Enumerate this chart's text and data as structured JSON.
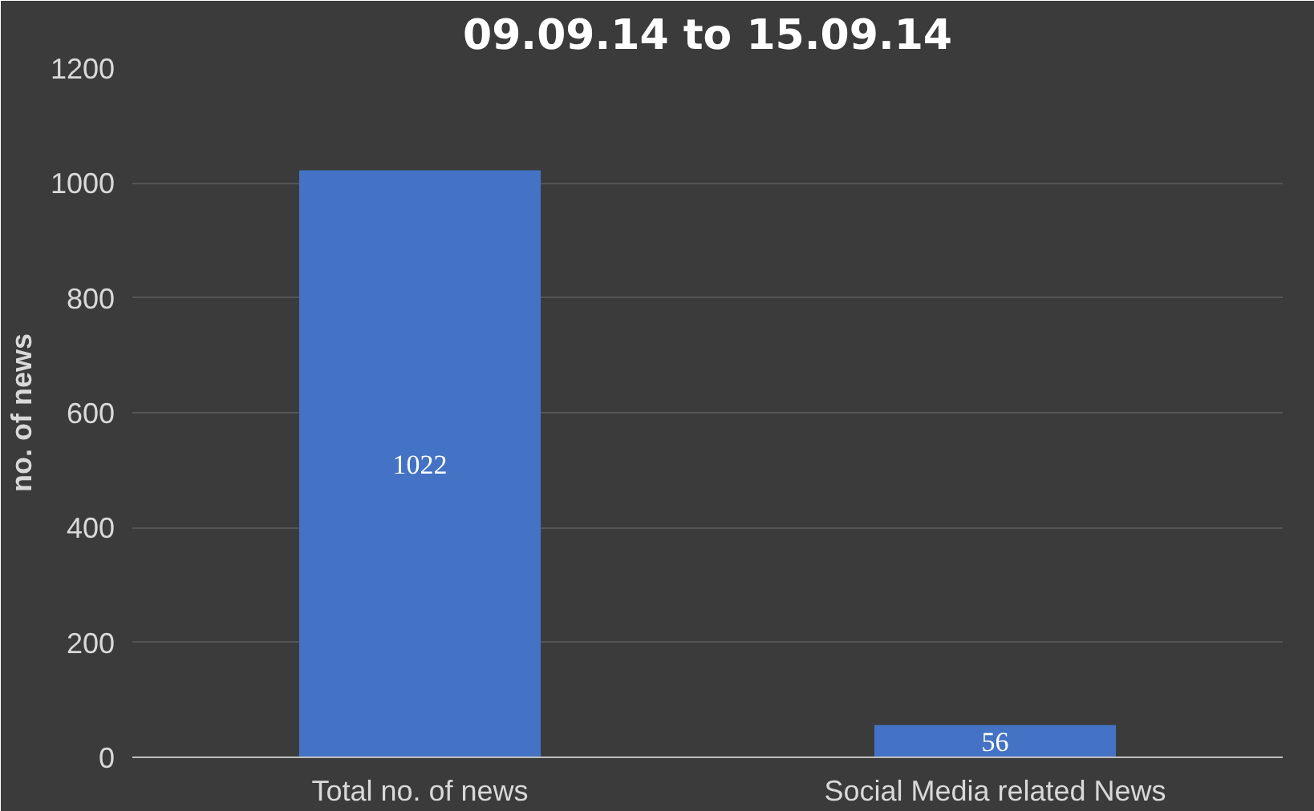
{
  "chart_data": {
    "type": "bar",
    "title": "09.09.14 to 15.09.14",
    "ylabel": "no. of news",
    "categories": [
      "Total no. of news",
      "Social Media related News"
    ],
    "values": [
      1022,
      56
    ],
    "color": "#4472c4",
    "ylim": [
      0,
      1200
    ],
    "yticks": [
      0,
      200,
      400,
      600,
      800,
      1000,
      1200
    ],
    "grid": "y",
    "data_labels": true
  }
}
